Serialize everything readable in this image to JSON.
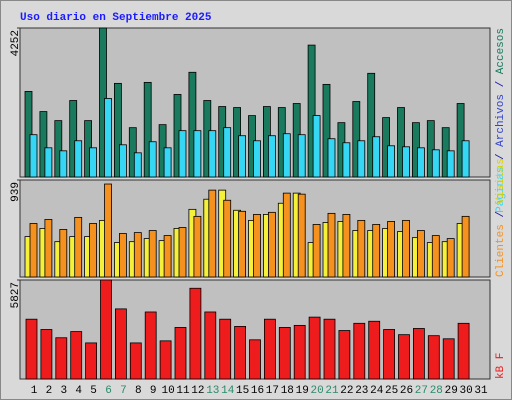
{
  "title": "Uso diario en Septiembre 2025",
  "chart_data": [
    {
      "type": "bar",
      "ylim": [
        0,
        4252
      ],
      "yticks": [
        4252
      ],
      "series": [
        {
          "name": "Accesos",
          "color": "#197a5e",
          "values": [
            2442,
            1867,
            1609,
            2183,
            1609,
            4252,
            2672,
            1408,
            2700,
            1494,
            2356,
            2988,
            2183,
            2011,
            1982,
            1752,
            2011,
            1982,
            2097,
            3764,
            2643,
            1551,
            2154,
            2959,
            1695,
            1982,
            1551,
            1609,
            1408,
            2097,
            null
          ]
        },
        {
          "name": "Páginas",
          "color": "#35d7f5",
          "values": [
            1207,
            833,
            747,
            1034,
            833,
            2241,
            919,
            690,
            1006,
            833,
            1322,
            1322,
            1322,
            1408,
            1178,
            1034,
            1178,
            1235,
            1207,
            1752,
            1092,
            977,
            1034,
            1149,
            891,
            862,
            833,
            776,
            747,
            1034,
            null
          ]
        }
      ],
      "legend": [
        {
          "text": "Páginas",
          "color": "#35d7f5"
        },
        {
          "text": " / ",
          "color": "#1a1aa0"
        },
        {
          "text": "Archivos",
          "color": "#3344cc"
        },
        {
          "text": " / ",
          "color": "#1a1aa0"
        },
        {
          "text": "Accesos",
          "color": "#197a5e"
        }
      ]
    },
    {
      "type": "bar",
      "ylim": [
        0,
        939
      ],
      "yticks": [
        939
      ],
      "series": [
        {
          "name": "Visitas",
          "color": "#f5f13a",
          "values": [
            391,
            470,
            342,
            391,
            391,
            548,
            333,
            342,
            372,
            352,
            470,
            655,
            753,
            841,
            646,
            548,
            606,
            714,
            812,
            333,
            528,
            538,
            450,
            450,
            470,
            440,
            381,
            333,
            342,
            518,
            null
          ]
        },
        {
          "name": "Clientes",
          "color": "#f5911e",
          "values": [
            518,
            557,
            460,
            577,
            518,
            900,
            421,
            430,
            450,
            401,
            479,
            587,
            841,
            743,
            636,
            606,
            626,
            812,
            802,
            509,
            616,
            606,
            548,
            509,
            538,
            548,
            450,
            401,
            372,
            587,
            null
          ]
        }
      ],
      "legend": [
        {
          "text": "Clientes",
          "color": "#f5911e"
        },
        {
          "text": " / ",
          "color": "#1a1aa0"
        },
        {
          "text": "Visitas",
          "color": "#d8d400"
        }
      ]
    },
    {
      "type": "bar",
      "ylim": [
        0,
        5827
      ],
      "yticks": [
        5827
      ],
      "series": [
        {
          "name": "kB F",
          "color": "#ee1c1c",
          "values": [
            3520,
            2914,
            2428,
            2792,
            2124,
            5827,
            4127,
            2124,
            3945,
            2246,
            3035,
            5341,
            3945,
            3520,
            3096,
            2307,
            3520,
            3035,
            3156,
            3642,
            3520,
            2853,
            3278,
            3399,
            2914,
            2610,
            2974,
            2550,
            2367,
            3278,
            null
          ]
        }
      ],
      "legend": [
        {
          "text": "kB F",
          "color": "#ee1c1c"
        }
      ],
      "categories": [
        "1",
        "2",
        "3",
        "4",
        "5",
        "6",
        "7",
        "8",
        "9",
        "10",
        "11",
        "12",
        "13",
        "14",
        "15",
        "16",
        "17",
        "18",
        "19",
        "20",
        "21",
        "22",
        "23",
        "24",
        "25",
        "26",
        "27",
        "28",
        "29",
        "30",
        "31"
      ],
      "category_colors": [
        "#000",
        "#000",
        "#000",
        "#000",
        "#000",
        "#2a8a6a",
        "#2a8a6a",
        "#000",
        "#000",
        "#000",
        "#000",
        "#000",
        "#2a8a6a",
        "#2a8a6a",
        "#000",
        "#000",
        "#000",
        "#000",
        "#000",
        "#2a8a6a",
        "#2a8a6a",
        "#000",
        "#000",
        "#000",
        "#000",
        "#000",
        "#2a8a6a",
        "#2a8a6a",
        "#000",
        "#000",
        "#000"
      ]
    }
  ]
}
